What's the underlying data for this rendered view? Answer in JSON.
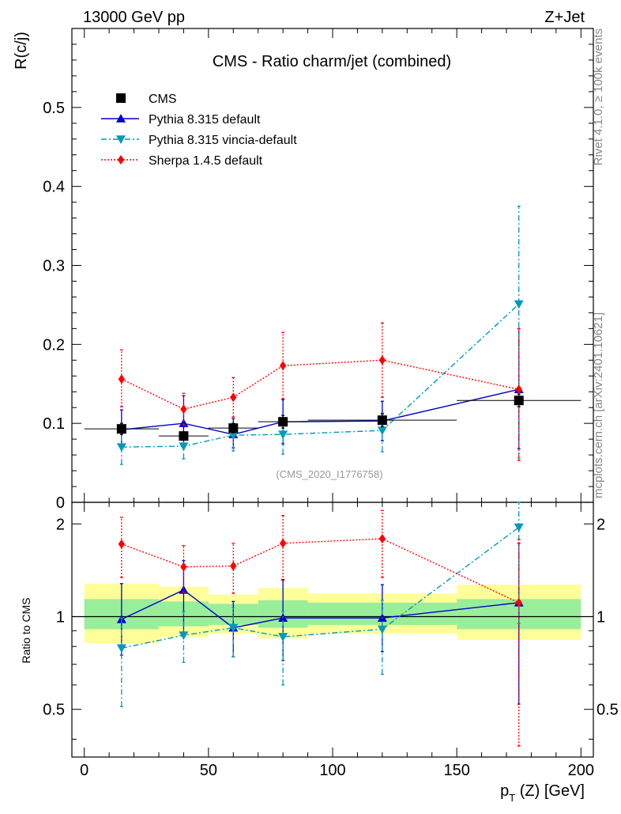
{
  "header": {
    "left": "13000 GeV pp",
    "right": "Z+Jet",
    "side_rivet": "Rivet 4.1.0, ≥ 100k events",
    "side_mcplots": "mcplots.cern.ch [arXiv:2401.10621]",
    "analysis_id": "(CMS_2020_I1776758)"
  },
  "chart_data": [
    {
      "type": "scatter",
      "panel": "main",
      "title": "CMS - Ratio charm/jet (combined)",
      "ylabel": "R(c/j)",
      "ylim": [
        0,
        0.6
      ],
      "yticks": [
        0,
        0.1,
        0.2,
        0.3,
        0.4,
        0.5
      ],
      "ytick_labels": [
        "0",
        "0.1",
        "0.2",
        "0.3",
        "0.4",
        "0.5"
      ],
      "xlim": [
        -5,
        205
      ],
      "legend": [
        "CMS",
        "Pythia 8.315 default",
        "Pythia 8.315 vincia-default",
        "Sherpa 1.4.5 default"
      ],
      "series": [
        {
          "name": "CMS",
          "color": "#000000",
          "marker": "square",
          "x": [
            15,
            40,
            60,
            80,
            120,
            175
          ],
          "xerr": [
            15,
            10,
            10,
            10,
            30,
            25
          ],
          "y": [
            0.093,
            0.084,
            0.094,
            0.102,
            0.104,
            0.129
          ],
          "yerr_lo": [
            0.007,
            0.005,
            0.006,
            0.008,
            0.008,
            0.008
          ],
          "yerr_hi": [
            0.007,
            0.005,
            0.006,
            0.008,
            0.008,
            0.008
          ]
        },
        {
          "name": "Pythia 8.315 default",
          "color": "#0000cc",
          "marker": "triangle-up",
          "x": [
            15,
            40,
            60,
            80,
            120,
            175
          ],
          "y": [
            0.092,
            0.1,
            0.086,
            0.102,
            0.103,
            0.143
          ],
          "yerr_lo": [
            0.022,
            0.03,
            0.017,
            0.028,
            0.025,
            0.075
          ],
          "yerr_hi": [
            0.025,
            0.035,
            0.02,
            0.028,
            0.025,
            0.077
          ]
        },
        {
          "name": "Pythia 8.315 vincia-default",
          "color": "#0099bb",
          "marker": "triangle-down",
          "x": [
            15,
            40,
            60,
            80,
            120,
            175
          ],
          "y": [
            0.07,
            0.071,
            0.085,
            0.086,
            0.091,
            0.251
          ],
          "yerr_lo": [
            0.022,
            0.016,
            0.02,
            0.025,
            0.027,
            0.195
          ],
          "yerr_hi": [
            0.022,
            0.016,
            0.015,
            0.018,
            0.022,
            0.124
          ]
        },
        {
          "name": "Sherpa 1.4.5 default",
          "color": "#ff0000",
          "marker": "diamond",
          "x": [
            15,
            40,
            60,
            80,
            120,
            175
          ],
          "y": [
            0.156,
            0.118,
            0.133,
            0.173,
            0.18,
            0.143
          ],
          "yerr_lo": [
            0.035,
            0.02,
            0.025,
            0.042,
            0.047,
            0.09
          ],
          "yerr_hi": [
            0.037,
            0.02,
            0.025,
            0.042,
            0.047,
            0.077
          ]
        }
      ]
    },
    {
      "type": "scatter",
      "panel": "ratio",
      "ylabel": "Ratio to CMS",
      "xlabel_main": "p",
      "xlabel_sub": "T",
      "xlabel_tail": " (Z) [GeV]",
      "ylim": [
        0.35,
        2.35
      ],
      "yticks": [
        0.5,
        1,
        2
      ],
      "ytick_labels": [
        "0.5",
        "1",
        "2"
      ],
      "xlim": [
        -5,
        205
      ],
      "xticks": [
        0,
        50,
        100,
        150,
        200
      ],
      "xtick_labels": [
        "0",
        "50",
        "100",
        "150",
        "200"
      ],
      "bands": [
        {
          "x0": 0,
          "x1": 30,
          "inner": [
            0.91,
            1.14
          ],
          "outer": [
            0.82,
            1.28
          ]
        },
        {
          "x0": 30,
          "x1": 50,
          "inner": [
            0.93,
            1.12
          ],
          "outer": [
            0.86,
            1.25
          ]
        },
        {
          "x0": 50,
          "x1": 70,
          "inner": [
            0.94,
            1.1
          ],
          "outer": [
            0.88,
            1.18
          ]
        },
        {
          "x0": 70,
          "x1": 90,
          "inner": [
            0.92,
            1.13
          ],
          "outer": [
            0.85,
            1.24
          ]
        },
        {
          "x0": 90,
          "x1": 150,
          "inner": [
            0.94,
            1.11
          ],
          "outer": [
            0.88,
            1.19
          ]
        },
        {
          "x0": 150,
          "x1": 200,
          "inner": [
            0.91,
            1.14
          ],
          "outer": [
            0.84,
            1.27
          ]
        }
      ],
      "series": [
        {
          "name": "Pythia 8.315 default",
          "color": "#0000cc",
          "marker": "triangle-up",
          "x": [
            15,
            40,
            60,
            80,
            120,
            175
          ],
          "y": [
            0.98,
            1.22,
            0.92,
            0.99,
            0.99,
            1.11
          ],
          "yerr_lo": [
            0.23,
            0.33,
            0.18,
            0.27,
            0.22,
            0.59
          ],
          "yerr_hi": [
            0.3,
            0.3,
            0.2,
            0.33,
            0.28,
            0.62
          ]
        },
        {
          "name": "Pythia 8.315 vincia-default",
          "color": "#0099bb",
          "marker": "triangle-down",
          "x": [
            15,
            40,
            60,
            80,
            120,
            175
          ],
          "y": [
            0.79,
            0.87,
            0.92,
            0.86,
            0.91,
            1.95
          ],
          "yerr_lo": [
            0.28,
            0.16,
            0.18,
            0.26,
            0.26,
            1.0
          ],
          "yerr_hi": [
            0.2,
            0.17,
            0.15,
            0.18,
            0.22,
            0.4
          ]
        },
        {
          "name": "Sherpa 1.4.5 default",
          "color": "#ff0000",
          "marker": "diamond",
          "x": [
            15,
            40,
            60,
            80,
            120,
            175
          ],
          "y": [
            1.72,
            1.45,
            1.46,
            1.73,
            1.79,
            1.11
          ],
          "yerr_lo": [
            0.38,
            0.25,
            0.27,
            0.42,
            0.45,
            0.73
          ],
          "yerr_hi": [
            0.38,
            0.25,
            0.27,
            0.4,
            0.42,
            0.67
          ]
        }
      ]
    }
  ]
}
